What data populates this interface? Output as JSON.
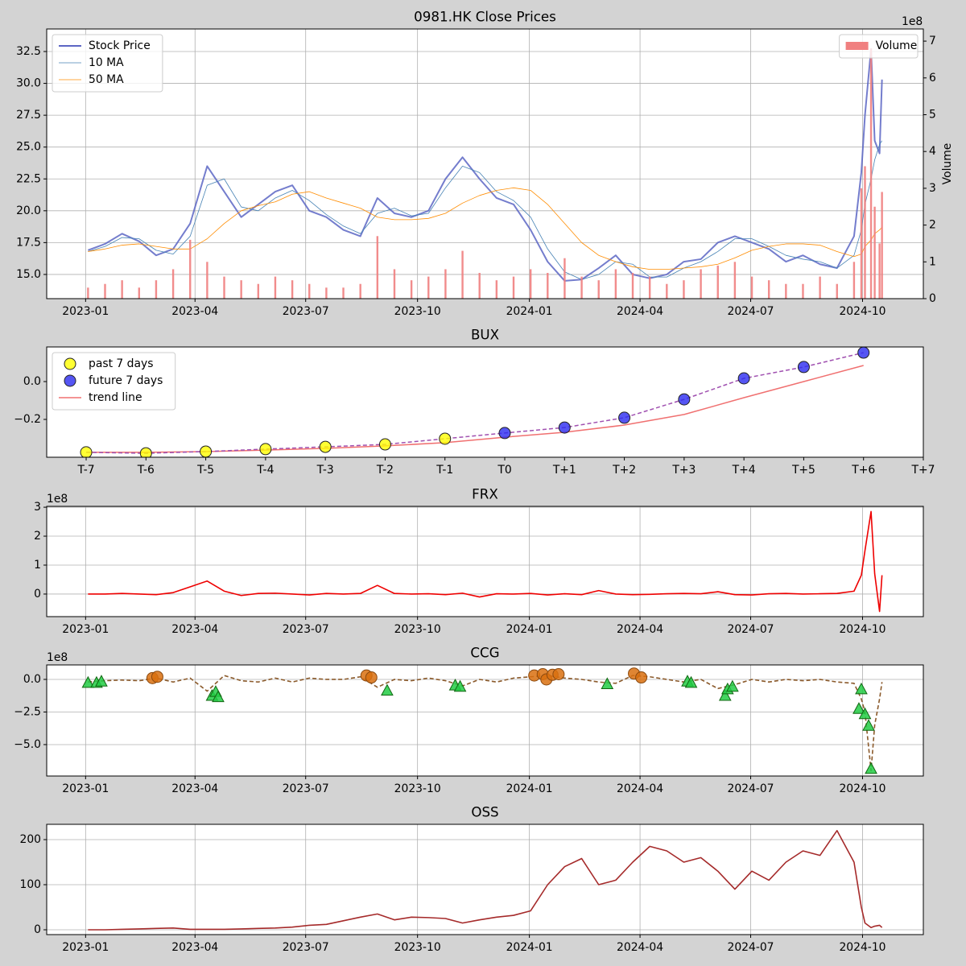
{
  "chart_data": [
    {
      "type": "line",
      "title": "0981.HK Close Prices",
      "y2label": "Volume",
      "y2offset": "1e8",
      "x": [
        "2023-01-03",
        "2023-01-17",
        "2023-01-31",
        "2023-02-14",
        "2023-02-28",
        "2023-03-14",
        "2023-03-28",
        "2023-04-11",
        "2023-04-25",
        "2023-05-09",
        "2023-05-23",
        "2023-06-06",
        "2023-06-20",
        "2023-07-04",
        "2023-07-18",
        "2023-08-01",
        "2023-08-15",
        "2023-08-29",
        "2023-09-12",
        "2023-09-26",
        "2023-10-10",
        "2023-10-24",
        "2023-11-07",
        "2023-11-21",
        "2023-12-05",
        "2023-12-19",
        "2024-01-02",
        "2024-01-16",
        "2024-01-30",
        "2024-02-13",
        "2024-02-27",
        "2024-03-12",
        "2024-03-26",
        "2024-04-09",
        "2024-04-23",
        "2024-05-07",
        "2024-05-21",
        "2024-06-04",
        "2024-06-18",
        "2024-07-02",
        "2024-07-16",
        "2024-07-30",
        "2024-08-13",
        "2024-08-27",
        "2024-09-10",
        "2024-09-24",
        "2024-09-30",
        "2024-10-03",
        "2024-10-08",
        "2024-10-11",
        "2024-10-15",
        "2024-10-17"
      ],
      "series": [
        {
          "name": "Stock Price",
          "type": "line",
          "color": "#5c66c4",
          "linewidth": 2,
          "values": [
            16.9,
            17.4,
            18.2,
            17.6,
            16.5,
            17.0,
            19.0,
            23.5,
            21.5,
            19.5,
            20.5,
            21.5,
            22.0,
            20.0,
            19.5,
            18.5,
            18.0,
            21.0,
            19.8,
            19.5,
            20.0,
            22.5,
            24.2,
            22.5,
            21.0,
            20.5,
            18.5,
            16.0,
            14.5,
            14.6,
            15.5,
            16.5,
            15.0,
            14.7,
            15.0,
            16.0,
            16.2,
            17.5,
            18.0,
            17.5,
            17.0,
            16.0,
            16.5,
            15.8,
            15.5,
            18.0,
            23.0,
            27.5,
            32.7,
            25.5,
            24.5,
            30.3
          ]
        },
        {
          "name": "10 MA",
          "type": "line",
          "color": "#4682b4",
          "linewidth": 0.8,
          "values": [
            16.8,
            17.2,
            17.9,
            17.8,
            16.9,
            16.6,
            18.0,
            22.0,
            22.5,
            20.3,
            20.0,
            21.0,
            21.6,
            20.8,
            19.7,
            18.8,
            18.2,
            19.8,
            20.2,
            19.6,
            19.8,
            21.8,
            23.5,
            23.0,
            21.5,
            20.8,
            19.5,
            17.0,
            15.2,
            14.6,
            15.0,
            16.0,
            15.8,
            14.8,
            14.8,
            15.5,
            16.0,
            16.8,
            17.8,
            17.8,
            17.2,
            16.5,
            16.2,
            16.0,
            15.5,
            16.5,
            18.5,
            20.5,
            22.5,
            24.0,
            25.2,
            25.5
          ]
        },
        {
          "name": "50 MA",
          "type": "line",
          "color": "#ff8c00",
          "linewidth": 0.8,
          "values": [
            16.8,
            17.0,
            17.3,
            17.4,
            17.2,
            17.0,
            17.0,
            17.8,
            19.0,
            20.0,
            20.4,
            20.7,
            21.3,
            21.5,
            21.0,
            20.6,
            20.2,
            19.5,
            19.3,
            19.3,
            19.4,
            19.8,
            20.6,
            21.2,
            21.6,
            21.8,
            21.6,
            20.5,
            19.0,
            17.5,
            16.5,
            16.0,
            15.6,
            15.4,
            15.4,
            15.5,
            15.6,
            15.8,
            16.3,
            16.9,
            17.2,
            17.4,
            17.4,
            17.3,
            16.8,
            16.4,
            16.6,
            17.2,
            17.7,
            18.2,
            18.5,
            18.7
          ]
        },
        {
          "name": "Volume",
          "type": "bar",
          "axis": "y2",
          "color": "#f08080",
          "values": [
            0.3,
            0.4,
            0.5,
            0.3,
            0.5,
            0.8,
            1.6,
            1.0,
            0.6,
            0.5,
            0.4,
            0.6,
            0.5,
            0.4,
            0.3,
            0.3,
            0.4,
            1.7,
            0.8,
            0.5,
            0.6,
            0.8,
            1.3,
            0.7,
            0.5,
            0.6,
            0.8,
            0.7,
            1.1,
            0.6,
            0.5,
            0.8,
            0.7,
            0.6,
            0.4,
            0.5,
            0.8,
            0.9,
            1.0,
            0.6,
            0.5,
            0.4,
            0.4,
            0.6,
            0.4,
            1.0,
            3.0,
            3.6,
            6.8,
            2.5,
            1.5,
            2.9
          ]
        }
      ],
      "xlim": [
        "2022-11-30",
        "2024-11-20"
      ],
      "xticks": [
        "2023-01",
        "2023-04",
        "2023-07",
        "2023-10",
        "2024-01",
        "2024-04",
        "2024-07",
        "2024-10"
      ],
      "ylim": [
        13.1,
        34.27
      ],
      "yticks": [
        {
          "value": 15,
          "label": "15.0"
        },
        17.5,
        {
          "value": 20,
          "label": "20.0"
        },
        22.5,
        {
          "value": 25,
          "label": "25.0"
        },
        27.5,
        {
          "value": 30,
          "label": "30.0"
        },
        32.5
      ],
      "y2lim": [
        0,
        7.33
      ],
      "y2ticks": [
        0,
        1,
        2,
        3,
        4,
        5,
        6,
        7
      ],
      "grid": true,
      "legend": "upper left",
      "legend2": "upper right"
    },
    {
      "type": "scatter",
      "title": "BUX",
      "categories": [
        "T-7",
        "T-6",
        "T-5",
        "T-4",
        "T-3",
        "T-2",
        "T-1",
        "T0",
        "T+1",
        "T+2",
        "T+3",
        "T+4",
        "T+5",
        "T+6",
        "T+7"
      ],
      "series": [
        {
          "name": "past 7 days",
          "type": "scatter",
          "color": "#ffff00",
          "values": [
            -0.374,
            -0.379,
            -0.37,
            -0.357,
            -0.345,
            -0.332,
            -0.302,
            null,
            null,
            null,
            null,
            null,
            null,
            null,
            null
          ]
        },
        {
          "name": "future 7 days",
          "type": "scatter",
          "color": "#2b2bf0",
          "values": [
            null,
            null,
            null,
            null,
            null,
            null,
            null,
            -0.272,
            -0.243,
            -0.191,
            -0.094,
            0.017,
            0.077,
            0.153,
            null
          ]
        },
        {
          "name": "trend line",
          "type": "line",
          "color": "#f07070",
          "linewidth": 1.5,
          "values": [
            -0.374,
            -0.374,
            -0.37,
            -0.362,
            -0.353,
            -0.34,
            -0.323,
            -0.294,
            -0.268,
            -0.23,
            -0.174,
            -0.085,
            0,
            0.085,
            null
          ]
        }
      ],
      "connector": {
        "color": "#a050b0",
        "linestyle": "dashed"
      },
      "xlim": [
        -0.66,
        14
      ],
      "ylim": [
        -0.4,
        0.183
      ],
      "yticks": [
        {
          "value": -0.2,
          "label": "−0.2"
        },
        {
          "value": 0,
          "label": "0.0"
        }
      ],
      "grid": false,
      "legend": "upper left"
    },
    {
      "type": "line",
      "title": "FRX",
      "yoffset": "1e8",
      "x": [
        "2023-01-03",
        "2023-01-17",
        "2023-01-31",
        "2023-02-14",
        "2023-02-28",
        "2023-03-14",
        "2023-03-28",
        "2023-04-11",
        "2023-04-25",
        "2023-05-09",
        "2023-05-23",
        "2023-06-06",
        "2023-06-20",
        "2023-07-04",
        "2023-07-18",
        "2023-08-01",
        "2023-08-15",
        "2023-08-29",
        "2023-09-12",
        "2023-09-26",
        "2023-10-10",
        "2023-10-24",
        "2023-11-07",
        "2023-11-21",
        "2023-12-05",
        "2023-12-19",
        "2024-01-02",
        "2024-01-16",
        "2024-01-30",
        "2024-02-13",
        "2024-02-27",
        "2024-03-12",
        "2024-03-26",
        "2024-04-09",
        "2024-04-23",
        "2024-05-07",
        "2024-05-21",
        "2024-06-04",
        "2024-06-18",
        "2024-07-02",
        "2024-07-16",
        "2024-07-30",
        "2024-08-13",
        "2024-08-27",
        "2024-09-10",
        "2024-09-24",
        "2024-09-30",
        "2024-10-03",
        "2024-10-08",
        "2024-10-11",
        "2024-10-15",
        "2024-10-17"
      ],
      "series": [
        {
          "type": "line",
          "color": "#ee0000",
          "linewidth": 1.6,
          "values": [
            0,
            0,
            0.02,
            0,
            -0.02,
            0.05,
            0.25,
            0.45,
            0.1,
            -0.05,
            0.02,
            0.03,
            0,
            -0.03,
            0.02,
            0,
            0.02,
            0.3,
            0.02,
            0,
            0.01,
            -0.02,
            0.03,
            -0.1,
            0.01,
            0,
            0.02,
            -0.03,
            0.01,
            -0.02,
            0.12,
            0,
            -0.02,
            -0.01,
            0.01,
            0.02,
            0.01,
            0.08,
            -0.02,
            -0.03,
            0.01,
            0.02,
            0,
            0.01,
            0.02,
            0.1,
            0.65,
            1.5,
            2.85,
            0.7,
            -0.6,
            0.65
          ]
        }
      ],
      "xlim": [
        "2022-11-30",
        "2024-11-20"
      ],
      "xticks": [
        "2023-01",
        "2023-04",
        "2023-07",
        "2023-10",
        "2024-01",
        "2024-04",
        "2024-07",
        "2024-10"
      ],
      "ylim": [
        -0.78,
        3.03
      ],
      "yticks": [
        0,
        1,
        2,
        3
      ],
      "grid": true
    },
    {
      "type": "line",
      "title": "CCG",
      "yoffset": "1e8",
      "x": [
        "2023-01-03",
        "2023-01-17",
        "2023-01-31",
        "2023-02-14",
        "2023-02-28",
        "2023-03-14",
        "2023-03-28",
        "2023-04-11",
        "2023-04-25",
        "2023-05-09",
        "2023-05-23",
        "2023-06-06",
        "2023-06-20",
        "2023-07-04",
        "2023-07-18",
        "2023-08-01",
        "2023-08-15",
        "2023-08-29",
        "2023-09-12",
        "2023-09-26",
        "2023-10-10",
        "2023-10-24",
        "2023-11-07",
        "2023-11-21",
        "2023-12-05",
        "2023-12-19",
        "2024-01-02",
        "2024-01-16",
        "2024-01-30",
        "2024-02-13",
        "2024-02-27",
        "2024-03-12",
        "2024-03-26",
        "2024-04-09",
        "2024-04-23",
        "2024-05-07",
        "2024-05-21",
        "2024-06-04",
        "2024-06-18",
        "2024-07-02",
        "2024-07-16",
        "2024-07-30",
        "2024-08-13",
        "2024-08-27",
        "2024-09-10",
        "2024-09-24",
        "2024-09-30",
        "2024-10-03",
        "2024-10-08",
        "2024-10-11",
        "2024-10-15",
        "2024-10-17"
      ],
      "series": [
        {
          "type": "line",
          "color": "#8b5a2b",
          "linewidth": 1.6,
          "linestyle": "dashed",
          "values": [
            -0.2,
            -0.1,
            -0.05,
            -0.1,
            0.1,
            -0.2,
            0.1,
            -0.9,
            0.3,
            -0.1,
            -0.2,
            0.1,
            -0.2,
            0.1,
            0,
            0,
            0.2,
            -0.6,
            0,
            -0.1,
            0.1,
            -0.1,
            -0.5,
            0,
            -0.2,
            0.1,
            0.2,
            0.3,
            0.1,
            0,
            -0.2,
            -0.3,
            0.3,
            0.2,
            0,
            -0.2,
            0,
            -0.7,
            -0.4,
            0,
            -0.2,
            0,
            -0.1,
            0,
            -0.2,
            -0.3,
            -1.5,
            -2.5,
            -7.0,
            -3.5,
            -1.5,
            -0.2
          ]
        }
      ],
      "markers": [
        {
          "marker": "circle",
          "color": "#d9700f",
          "edgecolor": "#8b4a10",
          "x": [
            "2023-02-25",
            "2023-03-01",
            "2023-08-20",
            "2023-08-24",
            "2024-01-05",
            "2024-01-12",
            "2024-01-15",
            "2024-01-20",
            "2024-01-25",
            "2024-03-27",
            "2024-04-02"
          ],
          "values": [
            0.1,
            0.2,
            0.3,
            0.15,
            0.3,
            0.4,
            0.0,
            0.35,
            0.4,
            0.45,
            0.15
          ]
        },
        {
          "marker": "triangle",
          "color": "#22cc44",
          "edgecolor": "#116611",
          "x": [
            "2023-01-03",
            "2023-01-10",
            "2023-01-14",
            "2023-04-15",
            "2023-04-18",
            "2023-04-20",
            "2023-09-06",
            "2023-11-01",
            "2023-11-05",
            "2024-03-05",
            "2024-05-10",
            "2024-05-13",
            "2024-06-10",
            "2024-06-12",
            "2024-06-16",
            "2024-09-28",
            "2024-09-30",
            "2024-10-03",
            "2024-10-06",
            "2024-10-08"
          ],
          "values": [
            -0.3,
            -0.3,
            -0.2,
            -1.3,
            -1.0,
            -1.4,
            -0.9,
            -0.5,
            -0.6,
            -0.4,
            -0.2,
            -0.3,
            -1.3,
            -0.8,
            -0.6,
            -2.3,
            -0.8,
            -2.7,
            -3.6,
            -6.9
          ]
        }
      ],
      "xlim": [
        "2022-11-30",
        "2024-11-20"
      ],
      "xticks": [
        "2023-01",
        "2023-04",
        "2023-07",
        "2023-10",
        "2024-01",
        "2024-04",
        "2024-07",
        "2024-10"
      ],
      "ylim": [
        -7.41,
        1.11
      ],
      "yticks": [
        {
          "value": 0,
          "label": "0.0"
        },
        {
          "value": -2.5,
          "label": "−2.5"
        },
        {
          "value": -5,
          "label": "−5.0"
        }
      ],
      "grid": true
    },
    {
      "type": "line",
      "title": "OSS",
      "x": [
        "2023-01-03",
        "2023-01-17",
        "2023-01-31",
        "2023-02-14",
        "2023-02-28",
        "2023-03-14",
        "2023-03-28",
        "2023-04-11",
        "2023-04-25",
        "2023-05-09",
        "2023-05-23",
        "2023-06-06",
        "2023-06-20",
        "2023-07-04",
        "2023-07-18",
        "2023-08-01",
        "2023-08-15",
        "2023-08-29",
        "2023-09-12",
        "2023-09-26",
        "2023-10-10",
        "2023-10-24",
        "2023-11-07",
        "2023-11-21",
        "2023-12-05",
        "2023-12-19",
        "2024-01-02",
        "2024-01-16",
        "2024-01-30",
        "2024-02-13",
        "2024-02-27",
        "2024-03-12",
        "2024-03-26",
        "2024-04-09",
        "2024-04-23",
        "2024-05-07",
        "2024-05-21",
        "2024-06-04",
        "2024-06-18",
        "2024-07-02",
        "2024-07-16",
        "2024-07-30",
        "2024-08-13",
        "2024-08-27",
        "2024-09-10",
        "2024-09-24",
        "2024-09-30",
        "2024-10-03",
        "2024-10-08",
        "2024-10-11",
        "2024-10-15",
        "2024-10-17"
      ],
      "series": [
        {
          "type": "line",
          "color": "#a52a2a",
          "linewidth": 1.6,
          "values": [
            0,
            0,
            1,
            2,
            3,
            4,
            1,
            1,
            1,
            2,
            3,
            4,
            6,
            10,
            12,
            20,
            28,
            35,
            22,
            28,
            27,
            25,
            15,
            22,
            28,
            32,
            42,
            100,
            140,
            158,
            100,
            110,
            150,
            185,
            175,
            150,
            160,
            130,
            90,
            130,
            110,
            150,
            175,
            165,
            220,
            150,
            50,
            15,
            5,
            8,
            10,
            5
          ]
        }
      ],
      "xlim": [
        "2022-11-30",
        "2024-11-20"
      ],
      "xticks": [
        "2023-01",
        "2023-04",
        "2023-07",
        "2023-10",
        "2024-01",
        "2024-04",
        "2024-07",
        "2024-10"
      ],
      "ylim": [
        -10.7,
        233.9
      ],
      "yticks": [
        0,
        100,
        200
      ],
      "grid": true
    }
  ]
}
